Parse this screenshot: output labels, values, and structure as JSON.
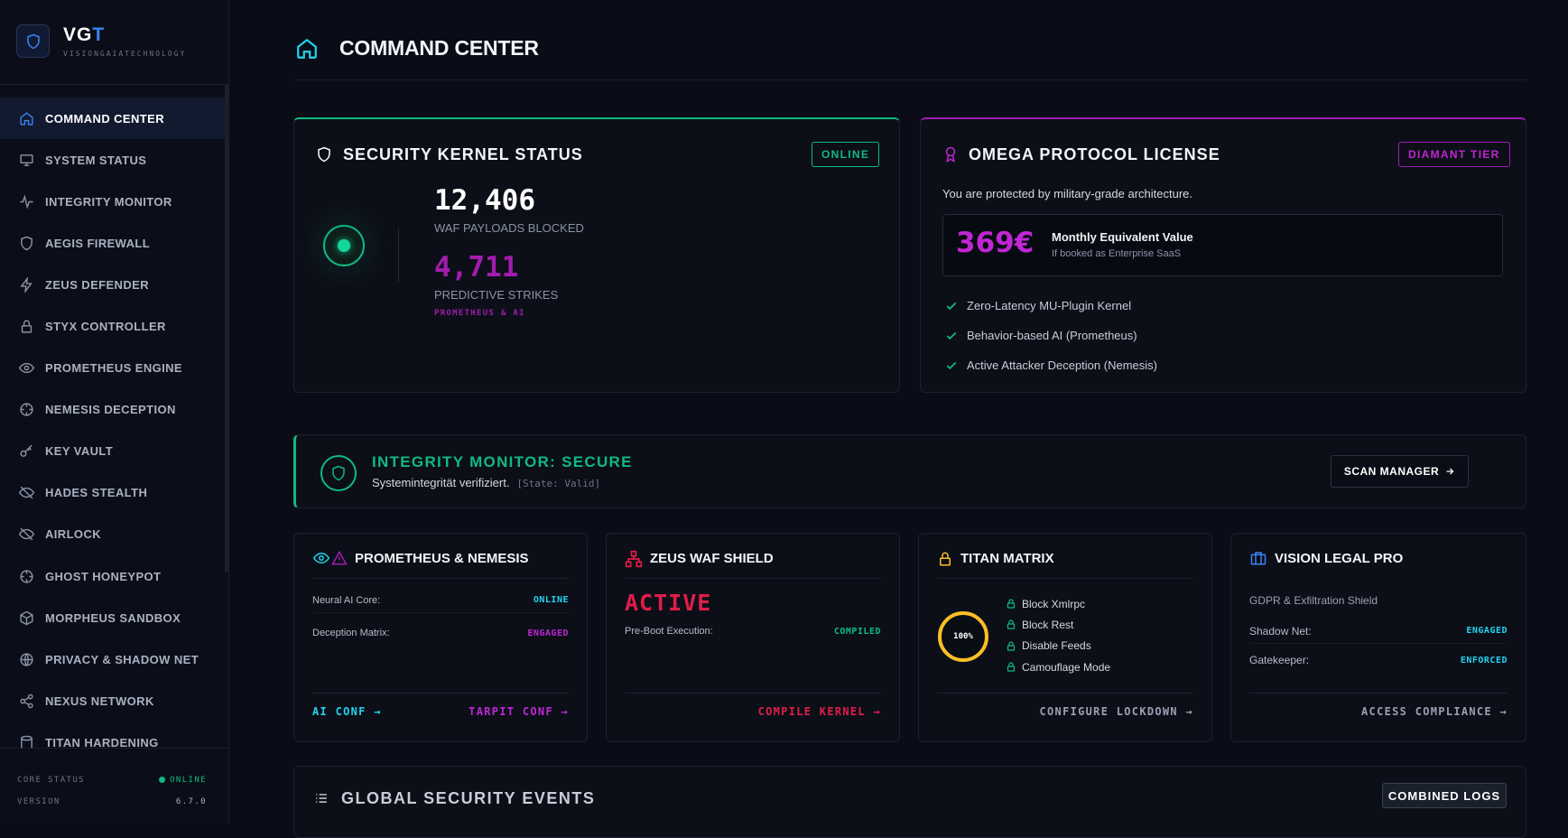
{
  "brand": {
    "name_main": "VG",
    "name_accent": "T",
    "subtitle": "VISIONGAIATECHNOLOGY"
  },
  "sidebar": {
    "items": [
      {
        "label": "COMMAND CENTER",
        "icon": "home-icon",
        "active": true
      },
      {
        "label": "SYSTEM STATUS",
        "icon": "monitor-icon"
      },
      {
        "label": "INTEGRITY MONITOR",
        "icon": "pulse-icon"
      },
      {
        "label": "AEGIS FIREWALL",
        "icon": "shield-icon"
      },
      {
        "label": "ZEUS DEFENDER",
        "icon": "bolt-icon"
      },
      {
        "label": "STYX CONTROLLER",
        "icon": "lock-icon"
      },
      {
        "label": "PROMETHEUS ENGINE",
        "icon": "eye-icon"
      },
      {
        "label": "NEMESIS DECEPTION",
        "icon": "crosshair-icon"
      },
      {
        "label": "KEY VAULT",
        "icon": "key-icon"
      },
      {
        "label": "HADES STEALTH",
        "icon": "eye-off-icon"
      },
      {
        "label": "AIRLOCK",
        "icon": "eye-off-icon"
      },
      {
        "label": "GHOST HONEYPOT",
        "icon": "crosshair-icon"
      },
      {
        "label": "MORPHEUS SANDBOX",
        "icon": "cube-icon"
      },
      {
        "label": "PRIVACY & SHADOW NET",
        "icon": "globe-icon"
      },
      {
        "label": "NEXUS NETWORK",
        "icon": "share-icon"
      },
      {
        "label": "TITAN HARDENING",
        "icon": "database-icon"
      }
    ],
    "footer": {
      "core_label": "CORE STATUS",
      "core_value": "ONLINE",
      "version_label": "VERSION",
      "version_value": "6.7.0"
    }
  },
  "page": {
    "title": "COMMAND CENTER"
  },
  "kernel": {
    "title": "SECURITY KERNEL STATUS",
    "badge": "ONLINE",
    "waf_count": "12,406",
    "waf_label": "WAF PAYLOADS BLOCKED",
    "strike_count": "4,711",
    "strike_label": "PREDICTIVE STRIKES",
    "strike_tag": "PROMETHEUS & AI"
  },
  "omega": {
    "title": "OMEGA PROTOCOL LICENSE",
    "badge": "DIAMANT TIER",
    "intro": "You are protected by military-grade architecture.",
    "price": "369€",
    "value_title": "Monthly Equivalent Value",
    "value_sub": "If booked as Enterprise SaaS",
    "features": [
      "Zero-Latency MU-Plugin Kernel",
      "Behavior-based AI (Prometheus)",
      "Active Attacker Deception (Nemesis)"
    ]
  },
  "integrity": {
    "title": "INTEGRITY MONITOR: SECURE",
    "subtitle": "Systemintegrität verifiziert.",
    "state": "[State: Valid]",
    "button": "SCAN MANAGER"
  },
  "prometheus": {
    "title": "PROMETHEUS & NEMESIS",
    "rows": [
      {
        "label": "Neural AI Core:",
        "value": "ONLINE"
      },
      {
        "label": "Deception Matrix:",
        "value": "ENGAGED"
      }
    ],
    "link_left": "AI CONF →",
    "link_right": "TARPIT CONF →"
  },
  "zeus": {
    "title": "ZEUS WAF SHIELD",
    "status": "ACTIVE",
    "rows": [
      {
        "label": "Pre-Boot Execution:",
        "value": "COMPILED"
      }
    ],
    "link": "COMPILE KERNEL →"
  },
  "titan": {
    "title": "TITAN MATRIX",
    "gauge_label": "100%",
    "gauge_percent": 100,
    "items": [
      "Block Xmlrpc",
      "Block Rest",
      "Disable Feeds",
      "Camouflage Mode"
    ],
    "link": "CONFIGURE LOCKDOWN →"
  },
  "legal": {
    "title": "VISION LEGAL PRO",
    "subtitle": "GDPR & Exfiltration Shield",
    "rows": [
      {
        "label": "Shadow Net:",
        "value": "ENGAGED"
      },
      {
        "label": "Gatekeeper:",
        "value": "ENFORCED"
      }
    ],
    "link": "ACCESS COMPLIANCE →"
  },
  "events": {
    "title": "GLOBAL SECURITY EVENTS",
    "button": "COMBINED LOGS"
  },
  "colors": {
    "accent_green": "#10b981",
    "accent_purple": "#c026d3",
    "accent_cyan": "#22d3ee",
    "accent_red": "#e11d48",
    "accent_amber": "#fbbf24",
    "accent_blue": "#3b82f6"
  }
}
